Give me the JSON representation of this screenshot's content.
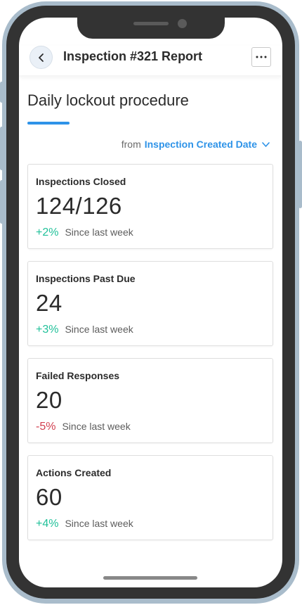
{
  "header": {
    "title": "Inspection #321 Report",
    "back_icon": "chevron-left-icon",
    "more_icon": "ellipsis-horizontal-icon"
  },
  "page": {
    "title": "Daily lockout procedure",
    "accent_color": "#2e93e8"
  },
  "filter": {
    "from_label": "from",
    "value": "Inspection Created Date",
    "icon": "chevron-down-icon"
  },
  "cards": [
    {
      "label": "Inspections Closed",
      "value": "124/126",
      "delta": "+2%",
      "trend": "positive",
      "since": "Since last week"
    },
    {
      "label": "Inspections Past Due",
      "value": "24",
      "delta": "+3%",
      "trend": "positive",
      "since": "Since last week"
    },
    {
      "label": "Failed Responses",
      "value": "20",
      "delta": "-5%",
      "trend": "negative",
      "since": "Since last week"
    },
    {
      "label": "Actions Created",
      "value": "60",
      "delta": "+4%",
      "trend": "positive",
      "since": "Since last week"
    }
  ],
  "colors": {
    "positive": "#22c19a",
    "negative": "#d23f4f"
  }
}
